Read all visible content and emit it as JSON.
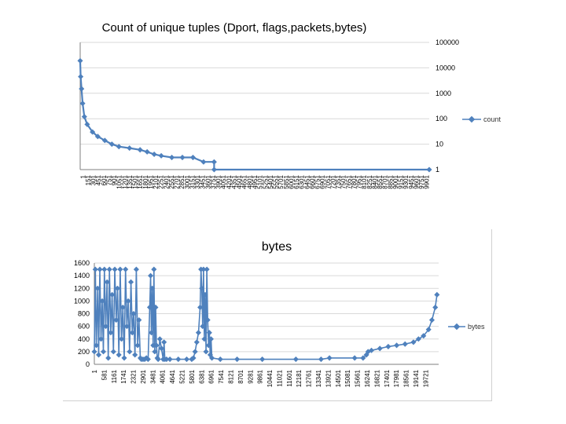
{
  "chart_data": [
    {
      "type": "line",
      "title": "Count of unique tuples (Dport, flags,packets,bytes)",
      "yscale": "log",
      "ylim": [
        1,
        100000
      ],
      "y_axis_position": "right",
      "y_ticks": [
        "1",
        "10",
        "100",
        "1000",
        "10000",
        "100000"
      ],
      "x_ticks": [
        "1",
        "151",
        "301",
        "451",
        "601",
        "751",
        "901",
        "1051",
        "1201",
        "1351",
        "1501",
        "1651",
        "1801",
        "1951",
        "2101",
        "2251",
        "2401",
        "2551",
        "2701",
        "2851",
        "3001",
        "3151",
        "3301",
        "3451",
        "3601",
        "3751",
        "3901",
        "4051",
        "4201",
        "4351",
        "4501",
        "4651",
        "4801",
        "4951",
        "5101",
        "5251",
        "5401",
        "5551",
        "5701",
        "5851",
        "6001",
        "6151",
        "6301",
        "6451",
        "6601",
        "6751",
        "6901",
        "7051",
        "7201",
        "7351",
        "7501",
        "7651",
        "7801",
        "7951",
        "8101",
        "8251",
        "8401",
        "8551",
        "8701",
        "8851",
        "9001",
        "9151",
        "9301",
        "9451",
        "9601",
        "9751",
        "9901"
      ],
      "xlim": [
        1,
        9901
      ],
      "grid": "horizontal",
      "legend": "right",
      "series": [
        {
          "name": "count",
          "color": "#4f81bd",
          "x": [
            1,
            15,
            40,
            70,
            120,
            200,
            350,
            500,
            700,
            900,
            1100,
            1400,
            1700,
            1900,
            2100,
            2300,
            2600,
            2900,
            3200,
            3500,
            3800,
            3801,
            9901
          ],
          "y": [
            19000,
            4500,
            1500,
            400,
            120,
            60,
            30,
            20,
            14,
            10,
            8,
            7,
            6,
            5,
            4,
            3.5,
            3,
            3,
            3,
            2,
            2,
            1,
            1
          ]
        }
      ]
    },
    {
      "type": "line",
      "title": "bytes",
      "ylim": [
        0,
        1600
      ],
      "y_ticks": [
        0,
        200,
        400,
        600,
        800,
        1000,
        1200,
        1400,
        1600
      ],
      "x_ticks": [
        "1",
        "581",
        "1161",
        "1741",
        "2321",
        "2901",
        "3481",
        "4061",
        "4641",
        "5221",
        "5801",
        "6381",
        "6961",
        "7541",
        "8121",
        "8701",
        "9281",
        "9861",
        "10441",
        "11021",
        "11601",
        "12181",
        "12761",
        "13341",
        "13921",
        "14501",
        "15081",
        "15661",
        "16241",
        "16821",
        "17401",
        "17981",
        "18561",
        "19141",
        "19721"
      ],
      "xlim": [
        1,
        20500
      ],
      "grid": "horizontal",
      "legend": "right",
      "series": [
        {
          "name": "bytes",
          "color": "#4f81bd",
          "x": [
            1,
            60,
            120,
            200,
            260,
            330,
            400,
            470,
            540,
            600,
            680,
            760,
            830,
            900,
            980,
            1060,
            1140,
            1220,
            1300,
            1380,
            1460,
            1540,
            1620,
            1700,
            1780,
            1860,
            1940,
            2020,
            2100,
            2180,
            2260,
            2340,
            2420,
            2500,
            2580,
            2660,
            2740,
            2800,
            2900,
            3000,
            3100,
            3200,
            3300,
            3350,
            3400,
            3450,
            3500,
            3550,
            3600,
            3650,
            3700,
            3750,
            3800,
            3900,
            4000,
            4100,
            4150,
            4200,
            4300,
            4500,
            5000,
            5500,
            5800,
            5900,
            6000,
            6100,
            6200,
            6300,
            6350,
            6400,
            6450,
            6500,
            6550,
            6600,
            6650,
            6700,
            6750,
            6800,
            6850,
            6900,
            6950,
            7000,
            7500,
            8500,
            10000,
            12000,
            13500,
            14000,
            15500,
            16000,
            16200,
            16300,
            16500,
            17000,
            17500,
            18000,
            18500,
            19000,
            19300,
            19600,
            19900,
            20100,
            20300,
            20400
          ],
          "y": [
            200,
            1500,
            300,
            1200,
            150,
            1500,
            400,
            1000,
            200,
            1500,
            600,
            1300,
            100,
            1500,
            500,
            1100,
            200,
            1500,
            700,
            1200,
            150,
            1500,
            400,
            900,
            100,
            1500,
            600,
            1000,
            200,
            1300,
            500,
            800,
            150,
            1500,
            300,
            700,
            100,
            80,
            80,
            80,
            100,
            80,
            900,
            1400,
            500,
            1200,
            300,
            1500,
            200,
            900,
            300,
            100,
            80,
            400,
            250,
            80,
            350,
            80,
            80,
            80,
            80,
            80,
            80,
            100,
            200,
            350,
            500,
            900,
            1500,
            1200,
            600,
            1500,
            400,
            1100,
            200,
            1500,
            700,
            300,
            500,
            150,
            400,
            100,
            80,
            80,
            80,
            80,
            80,
            100,
            100,
            100,
            150,
            200,
            220,
            250,
            280,
            300,
            320,
            350,
            400,
            450,
            550,
            700,
            900,
            1100
          ]
        }
      ]
    }
  ]
}
